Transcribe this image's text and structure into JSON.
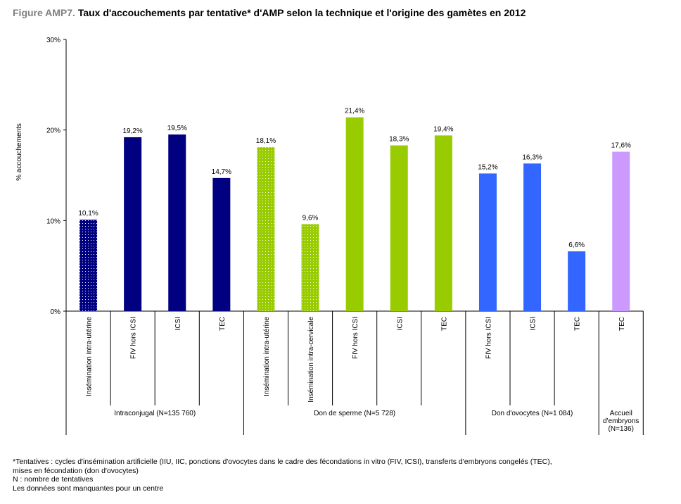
{
  "title": {
    "figure_label": "Figure AMP7.",
    "text": "Taux d'accouchements par tentative* d'AMP selon la technique et l'origine des gamètes en 2012"
  },
  "chart_data": {
    "type": "bar",
    "ylabel": "% accouchements",
    "ylim": [
      0,
      30
    ],
    "yticks": [
      "0%",
      "10%",
      "20%",
      "30%"
    ],
    "grid": false,
    "colors": {
      "intraconjugal": "#000080",
      "don_de_sperme": "#99cc00",
      "don_ovocytes": "#3366ff",
      "accueil": "#cc99ff"
    },
    "categories": [
      "Insémination intra-utérine",
      "FIV hors ICSI",
      "ICSI",
      "TEC",
      "Insémination intra-utérine",
      "Insémination intra-cervicale",
      "FIV hors ICSI",
      "ICSI",
      "TEC",
      "FIV hors ICSI",
      "ICSI",
      "TEC",
      "TEC"
    ],
    "values": [
      10.1,
      19.2,
      19.5,
      14.7,
      18.1,
      9.6,
      21.4,
      18.3,
      19.4,
      15.2,
      16.3,
      6.6,
      17.6
    ],
    "data_labels": [
      "10,1%",
      "19,2%",
      "19,5%",
      "14,7%",
      "18,1%",
      "9,6%",
      "21,4%",
      "18,3%",
      "19,4%",
      "15,2%",
      "16,3%",
      "6,6%",
      "17,6%"
    ],
    "bar_group": [
      "intraconjugal",
      "intraconjugal",
      "intraconjugal",
      "intraconjugal",
      "don_de_sperme",
      "don_de_sperme",
      "don_de_sperme",
      "don_de_sperme",
      "don_de_sperme",
      "don_ovocytes",
      "don_ovocytes",
      "don_ovocytes",
      "accueil"
    ],
    "dotted": [
      true,
      false,
      false,
      false,
      true,
      true,
      false,
      false,
      false,
      false,
      false,
      false,
      false
    ],
    "groups": [
      {
        "key": "intraconjugal",
        "label": "Intraconjugal (N=135 760)",
        "count": 4
      },
      {
        "key": "don_de_sperme",
        "label": "Don de sperme (N=5 728)",
        "count": 5
      },
      {
        "key": "don_ovocytes",
        "label": "Don d'ovocytes (N=1 084)",
        "count": 3
      },
      {
        "key": "accueil",
        "label": "Accueil d'embryons (N=136)",
        "label_lines": [
          "Accueil",
          "d'embryons",
          "(N=136)"
        ],
        "count": 1
      }
    ]
  },
  "footnotes": [
    "*Tentatives : cycles d'insémination artificielle (IIU, IIC, ponctions d'ovocytes dans le cadre des fécondations in vitro (FIV, ICSI), transferts d'embryons congelés (TEC),",
    "mises en fécondation (don d'ovocytes)",
    "N : nombre de tentatives",
    "Les données sont manquantes pour un centre"
  ]
}
